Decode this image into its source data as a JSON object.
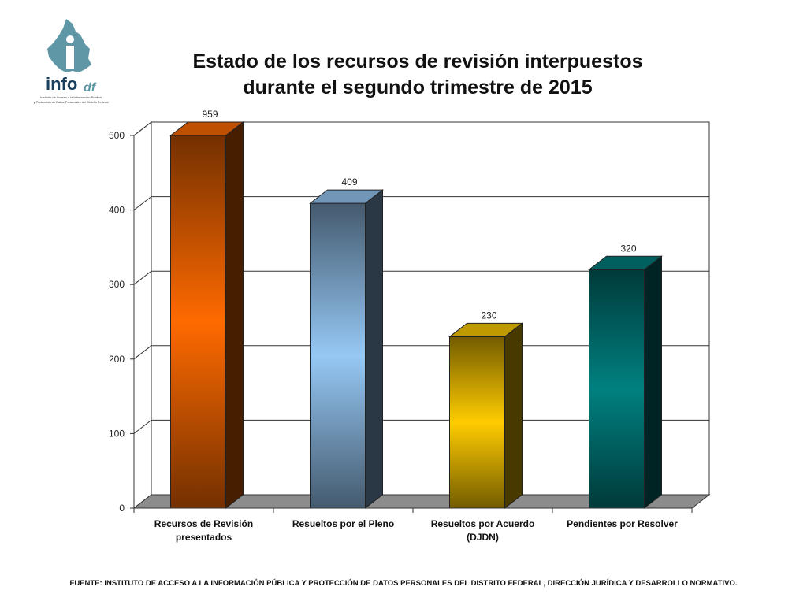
{
  "logo": {
    "brand_main": "info",
    "brand_suffix": "df",
    "subtitle_line1": "Instituto de Acceso a la Información Pública",
    "subtitle_line2": "y Protección de Datos Personales del Distrito Federal"
  },
  "chart_data": {
    "type": "bar",
    "title": "Estado de los recursos de revisión interpuestos durante el segundo trimestre de 2015",
    "title_lines": [
      "Estado de los recursos de revisión interpuestos",
      "durante el segundo trimestre de 2015"
    ],
    "categories": [
      [
        "Recursos de Revisión",
        "presentados"
      ],
      [
        "Resueltos por el Pleno"
      ],
      [
        "Resueltos por Acuerdo",
        "(DJDN)"
      ],
      [
        "Pendientes por Resolver"
      ]
    ],
    "values": [
      959,
      409,
      230,
      320
    ],
    "data_labels": [
      "959",
      "409",
      "230",
      "320"
    ],
    "ylim": [
      0,
      500
    ],
    "yticks": [
      0,
      100,
      200,
      300,
      400,
      500
    ],
    "grid": true,
    "three_d": true,
    "colors": [
      "#ff6a00",
      "#96c8f5",
      "#ffcc00",
      "#008080"
    ]
  },
  "source_note": "FUENTE: INSTITUTO DE ACCESO A LA INFORMACIÓN PÚBLICA Y PROTECCIÓN DE DATOS PERSONALES DEL DISTRITO FEDERAL, DIRECCIÓN JURÍDICA Y DESARROLLO NORMATIVO."
}
